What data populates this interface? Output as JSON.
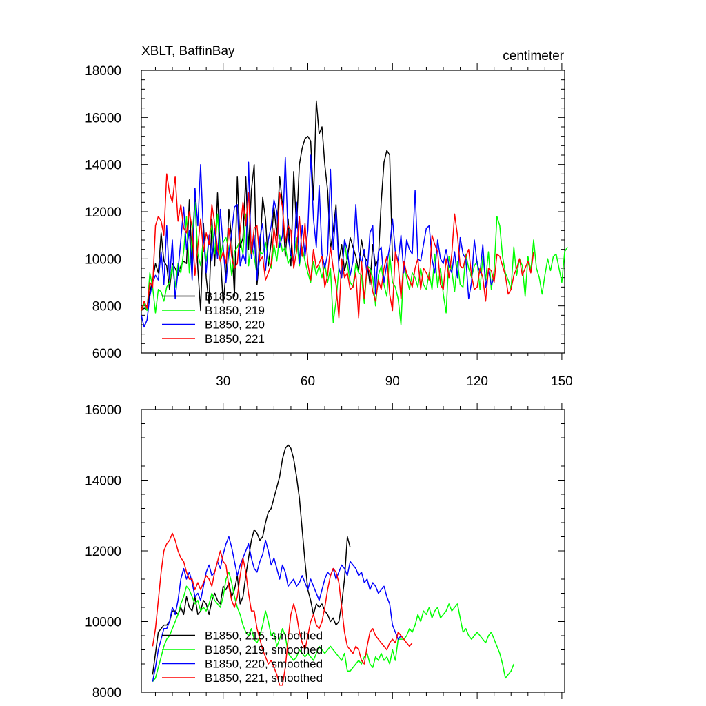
{
  "chart_data": [
    {
      "type": "line",
      "title": "XBLT, BaffinBay",
      "units_label": "centimeter",
      "xlim": [
        1,
        151
      ],
      "ylim": [
        6000,
        18000
      ],
      "x_ticks": [
        30,
        60,
        90,
        120,
        150
      ],
      "x_tick_labels": [
        "30",
        "60",
        "90",
        "120",
        "150"
      ],
      "y_ticks": [
        6000,
        8000,
        10000,
        12000,
        14000,
        16000,
        18000
      ],
      "y_tick_labels": [
        "6000",
        "8000",
        "10000",
        "12000",
        "14000",
        "16000",
        "18000"
      ],
      "legend_location": "bottom-left",
      "series": [
        {
          "name": "B1850, 215",
          "color": "#000000",
          "x_start": 1,
          "values": [
            7800,
            7900,
            7850,
            8600,
            9100,
            9800,
            9400,
            11100,
            9900,
            9700,
            8700,
            9800,
            9600,
            9300,
            9700,
            9900,
            9800,
            12500,
            9700,
            12900,
            9600,
            7800,
            11500,
            9200,
            8100,
            11700,
            9700,
            12800,
            10200,
            8100,
            9400,
            12100,
            10800,
            8400,
            13500,
            10500,
            10900,
            13500,
            10400,
            12900,
            14000,
            8900,
            10200,
            12600,
            11700,
            9700,
            10700,
            12200,
            11000,
            13500,
            12300,
            10100,
            11700,
            9700,
            13700,
            11300,
            14000,
            14700,
            15100,
            15200,
            15000,
            12500,
            16700,
            15300,
            15600,
            14000,
            12900,
            10400,
            11200,
            12300,
            9900,
            10600,
            9500,
            10000,
            10900,
            10500,
            10100,
            9500,
            10800,
            10100,
            9900,
            8900,
            10600,
            9700,
            10000,
            12400,
            14100,
            14600,
            14400,
            9900
          ]
        },
        {
          "name": "B1850, 219",
          "color": "#00ff00",
          "x_start": 1,
          "values": [
            7800,
            8100,
            7800,
            9400,
            8800,
            7700,
            8700,
            8600,
            8200,
            8800,
            9000,
            9700,
            8800,
            9800,
            9400,
            10300,
            11800,
            9400,
            11000,
            12400,
            10200,
            9700,
            10900,
            9900,
            10900,
            11400,
            10200,
            11900,
            10000,
            10700,
            10900,
            10400,
            9300,
            10300,
            10500,
            10800,
            10200,
            11900,
            9700,
            10700,
            10100,
            9300,
            10300,
            10200,
            10700,
            10000,
            9600,
            10600,
            9900,
            11000,
            10300,
            10500,
            9800,
            10100,
            10000,
            10900,
            9700,
            10500,
            9900,
            9400,
            9000,
            9900,
            9300,
            9700,
            9200,
            9800,
            9000,
            9600,
            7300,
            8200,
            9600,
            9200,
            10800,
            9800,
            9000,
            8800,
            9800,
            9400,
            9300,
            8100,
            9700,
            9600,
            9200,
            8000,
            9300,
            9700,
            8900,
            8400,
            10200,
            9000,
            8800,
            8300,
            7200,
            9800,
            9200,
            8700,
            9400,
            9200,
            8800,
            9600,
            8900,
            8700,
            9400,
            8700,
            10200,
            8800,
            9600,
            8500,
            7700,
            10100,
            9500,
            8600,
            9900,
            8900,
            8800,
            10200,
            9600,
            9200,
            9700,
            9900,
            8700,
            10100,
            9100,
            10300,
            8700,
            9500,
            11800,
            11400,
            10100,
            9400,
            9100,
            8700,
            10500,
            9300,
            10000,
            9700,
            8400,
            10100,
            9500,
            10800,
            9600,
            9200,
            8500,
            9300,
            10000,
            9500,
            10100,
            10200,
            9600,
            9000,
            10300,
            10500
          ]
        },
        {
          "name": "B1850, 220",
          "color": "#0000ff",
          "x_start": 1,
          "values": [
            7600,
            7100,
            7400,
            8400,
            9000,
            9300,
            9100,
            10300,
            8900,
            11400,
            9100,
            10800,
            8300,
            9500,
            10800,
            12200,
            10400,
            11200,
            9100,
            13000,
            11400,
            14000,
            11000,
            9400,
            11000,
            9900,
            11300,
            10000,
            12100,
            10500,
            9000,
            10300,
            11100,
            12200,
            12300,
            9700,
            10200,
            9800,
            14100,
            10000,
            11000,
            9100,
            10900,
            11500,
            9500,
            10800,
            11400,
            12500,
            12000,
            10500,
            11000,
            14300,
            10900,
            10200,
            9800,
            12400,
            9800,
            11400,
            10100,
            11200,
            14400,
            11700,
            10500,
            13100,
            10200,
            9600,
            10200,
            13800,
            10400,
            12100,
            9600,
            9200,
            10800,
            10400,
            9300,
            9900,
            12300,
            10300,
            9800,
            10400,
            9300,
            11100,
            11400,
            8500,
            10300,
            10500,
            9000,
            9800,
            10500,
            11700,
            10300,
            9900,
            11000,
            9400,
            10800,
            10400,
            10200,
            12900,
            10000,
            9900,
            10600,
            11300,
            11400,
            10000,
            9400,
            10800,
            10000,
            9800,
            10400,
            9700,
            9400,
            10300,
            9200,
            10900,
            10200,
            10000,
            8300,
            9000,
            10800,
            9800,
            9400,
            10600,
            8800,
            9500,
            8900,
            9200
          ]
        },
        {
          "name": "B1850, 221",
          "color": "#ff0000",
          "x_start": 1,
          "values": [
            7800,
            8200,
            7900,
            9000,
            8800,
            11400,
            11800,
            11600,
            11000,
            13600,
            12800,
            12400,
            13500,
            11600,
            12300,
            11300,
            11100,
            12000,
            11300,
            9300,
            10500,
            11700,
            10300,
            11100,
            10600,
            12300,
            11500,
            10400,
            9900,
            10300,
            9800,
            11300,
            10100,
            9600,
            9800,
            11200,
            12400,
            11400,
            12800,
            10200,
            11300,
            11400,
            9900,
            10100,
            9100,
            9400,
            9800,
            11300,
            10500,
            12800,
            12200,
            10700,
            11400,
            11200,
            9600,
            10300,
            11800,
            10100,
            11500,
            9800,
            9100,
            10400,
            9600,
            9800,
            10100,
            8800,
            9300,
            10500,
            9600,
            8900,
            7500,
            10000,
            9200,
            9400,
            8700,
            8800,
            9400,
            7500,
            9900,
            8300,
            9700,
            9400,
            8600,
            8200,
            9100,
            8700,
            9600,
            10100,
            8500,
            7800,
            10300,
            9800,
            8300,
            9900,
            9400,
            9100,
            8800,
            9600,
            10000,
            8700,
            9600,
            9400,
            9100,
            11000,
            10600,
            10300,
            8900,
            8700,
            10000,
            9200,
            10200,
            11900,
            11000,
            9700,
            9600,
            10100,
            10400,
            9300,
            8700,
            8800,
            9600,
            9200,
            8200,
            9600,
            9500,
            9000,
            10200,
            10100,
            9700,
            9300,
            8500,
            8700,
            9300,
            9600,
            10000,
            9300,
            9600,
            9900,
            9400,
            10300
          ]
        }
      ]
    },
    {
      "type": "line",
      "title": "",
      "xlim": [
        1,
        151
      ],
      "ylim": [
        8000,
        16000
      ],
      "x_ticks": [
        30,
        60,
        90,
        120,
        150
      ],
      "y_ticks": [
        8000,
        10000,
        12000,
        14000,
        16000
      ],
      "y_tick_labels": [
        "8000",
        "10000",
        "12000",
        "14000",
        "16000"
      ],
      "legend_location": "bottom-left",
      "series": [
        {
          "name": "B1850, 215, smoothed",
          "color": "#000000",
          "x_start": 5,
          "values": [
            8500,
            9100,
            9700,
            9800,
            9900,
            9900,
            10000,
            10300,
            10300,
            10200,
            10400,
            10200,
            10700,
            10400,
            10300,
            10700,
            10200,
            10300,
            10600,
            10500,
            10200,
            10600,
            10800,
            10600,
            10500,
            11000,
            10900,
            11100,
            10700,
            10900,
            11300,
            10500,
            10700,
            11300,
            11800,
            12300,
            12600,
            12500,
            12300,
            12400,
            12800,
            13100,
            13200,
            13500,
            13800,
            14100,
            14600,
            14900,
            15000,
            14900,
            14600,
            14100,
            13500,
            12600,
            11700,
            10900,
            10600,
            10200,
            10500,
            10400,
            10500,
            10300,
            10200,
            10000,
            10100,
            9900,
            10000,
            10500,
            11200,
            12400,
            12100
          ]
        },
        {
          "name": "B1850, 219, smoothed",
          "color": "#00ff00",
          "x_start": 5,
          "values": [
            8300,
            8400,
            8700,
            9000,
            9300,
            9500,
            9600,
            9800,
            10000,
            10200,
            10500,
            10700,
            11000,
            10900,
            10700,
            10500,
            10600,
            10300,
            10400,
            10300,
            10500,
            10800,
            10600,
            10500,
            10400,
            10700,
            11200,
            11400,
            11100,
            10700,
            10400,
            10200,
            9900,
            9700,
            9600,
            9800,
            9500,
            9400,
            9600,
            9900,
            10300,
            10000,
            9600,
            9700,
            9300,
            9500,
            9800,
            9600,
            9100,
            9000,
            8900,
            9000,
            9200,
            9100,
            9000,
            9100,
            9000,
            8900,
            9100,
            9300,
            9200,
            9100,
            9200,
            9300,
            9200,
            9100,
            9000,
            8900,
            9100,
            8600,
            8600,
            8700,
            8800,
            8900,
            8800,
            9000,
            9100,
            8800,
            8700,
            9000,
            8900,
            9100,
            8900,
            9000,
            8800,
            9200,
            8900,
            9500,
            9500,
            9500,
            9600,
            9800,
            9700,
            9900,
            10200,
            10000,
            10300,
            10200,
            10400,
            10100,
            10300,
            10400,
            10100,
            10200,
            10300,
            10500,
            10300,
            10400,
            10500,
            10100,
            9700,
            9800,
            9600,
            9500,
            9600,
            9700,
            9600,
            9500,
            9400,
            9600,
            9700,
            9500,
            9300,
            9100,
            8800,
            8400,
            8500,
            8600,
            8800
          ]
        },
        {
          "name": "B1850, 220, smoothed",
          "color": "#0000ff",
          "x_start": 5,
          "values": [
            8300,
            8700,
            9200,
            9500,
            9800,
            9800,
            10000,
            10400,
            10200,
            10600,
            11200,
            11500,
            11200,
            11400,
            11100,
            10700,
            10800,
            10600,
            11000,
            11400,
            11600,
            11300,
            11400,
            11700,
            11500,
            11900,
            12200,
            12400,
            12100,
            11700,
            11300,
            11600,
            11800,
            12000,
            12200,
            11800,
            11500,
            11400,
            11700,
            11900,
            12300,
            12000,
            11600,
            11800,
            11500,
            11200,
            11600,
            11400,
            11000,
            11100,
            11200,
            11000,
            11100,
            11300,
            11100,
            10900,
            11200,
            11000,
            10800,
            10600,
            10900,
            11200,
            11400,
            11300,
            11500,
            11200,
            11400,
            11600,
            11500,
            11300,
            11700,
            11600,
            11500,
            11300,
            11400,
            11100,
            11200,
            10900,
            11100,
            11000,
            10800,
            10900,
            11000,
            10700,
            10500,
            9900,
            9700,
            9500,
            9600,
            9500
          ]
        },
        {
          "name": "B1850, 221, smoothed",
          "color": "#ff0000",
          "x_start": 5,
          "values": [
            9300,
            9800,
            10600,
            11400,
            12000,
            12200,
            12300,
            12500,
            12300,
            12000,
            11800,
            11700,
            11400,
            11200,
            11200,
            10900,
            11100,
            10900,
            11100,
            11300,
            11200,
            11000,
            11400,
            11700,
            12000,
            11700,
            11600,
            11000,
            10600,
            10400,
            10700,
            11300,
            11800,
            11400,
            10800,
            10300,
            10300,
            9800,
            9500,
            9200,
            9000,
            8800,
            8900,
            8700,
            8500,
            8200,
            8200,
            8700,
            9500,
            10200,
            10500,
            10200,
            9700,
            9400,
            9200,
            9600,
            10000,
            10200,
            9900,
            9800,
            10000,
            10400,
            10900,
            11300,
            11500,
            11400,
            11100,
            10400,
            9700,
            9300,
            9200,
            9100,
            9300,
            9200,
            8900,
            8800,
            9300,
            9700,
            9800,
            9600,
            9500,
            9400,
            9300,
            9200,
            9400,
            9500,
            9400,
            9700,
            9600,
            9500,
            9400,
            9300,
            9400
          ]
        }
      ]
    }
  ]
}
